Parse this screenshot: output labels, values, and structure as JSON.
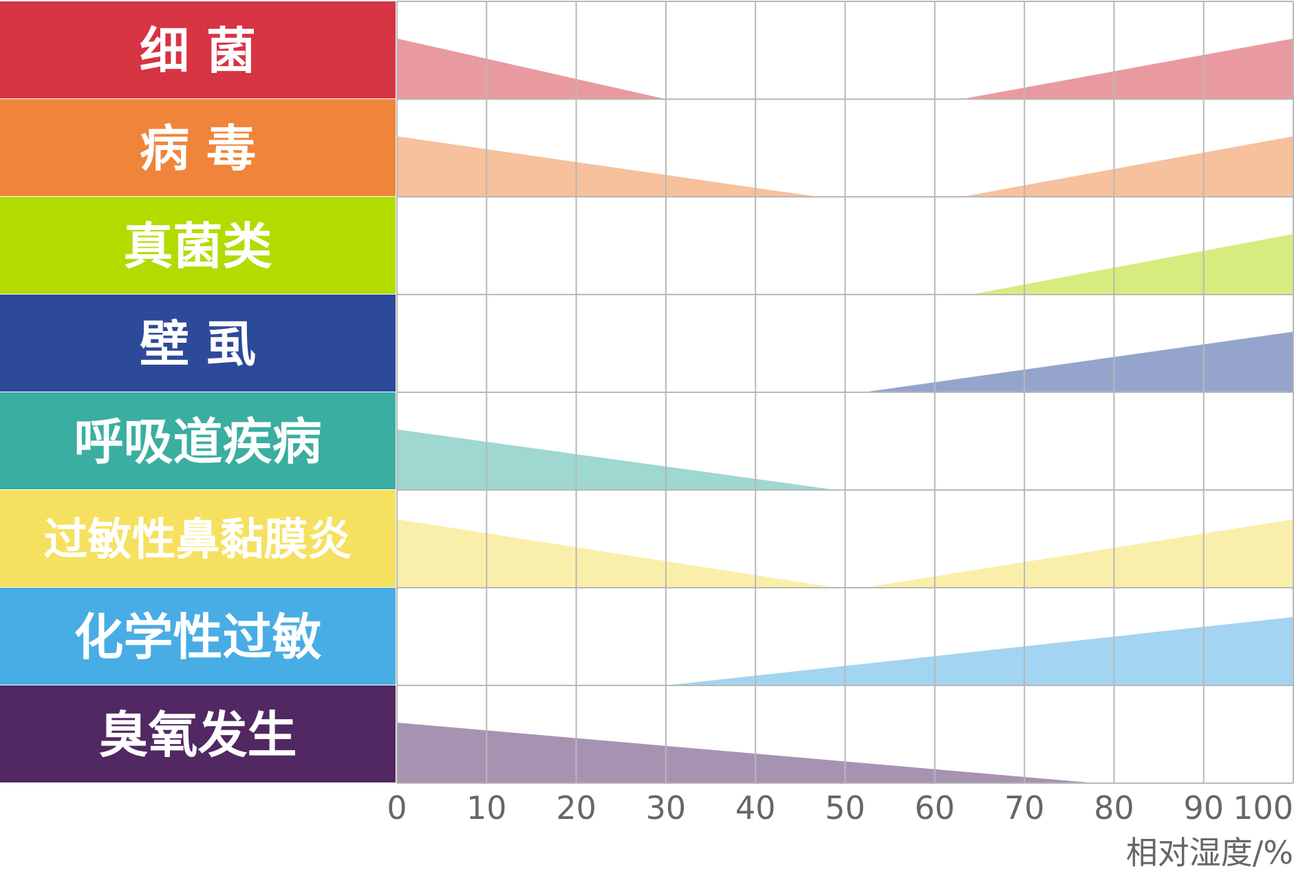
{
  "chart_data": {
    "type": "area",
    "title": "",
    "xlabel": "相对湿度/%",
    "ylabel": "",
    "xlim": [
      0,
      100
    ],
    "ticks": [
      "0",
      "10",
      "20",
      "30",
      "40",
      "50",
      "60",
      "70",
      "80",
      "90",
      "100"
    ],
    "grid": true,
    "rows": [
      {
        "name": "细 菌",
        "label_color": "#d63442",
        "fill_color": "#e99aa0",
        "segments": [
          {
            "x_start": 0,
            "x_end": 30,
            "peak_at": "start",
            "level": 0.62
          },
          {
            "x_start": 63,
            "x_end": 100,
            "peak_at": "end",
            "level": 0.62
          }
        ]
      },
      {
        "name": "病 毒",
        "label_color": "#ee853a",
        "fill_color": "#f6c19c",
        "segments": [
          {
            "x_start": 0,
            "x_end": 47,
            "peak_at": "start",
            "level": 0.62
          },
          {
            "x_start": 63,
            "x_end": 100,
            "peak_at": "end",
            "level": 0.62
          }
        ]
      },
      {
        "name": "真菌类",
        "label_color": "#b2dc00",
        "fill_color": "#d7ec7f",
        "segments": [
          {
            "x_start": 64,
            "x_end": 100,
            "peak_at": "end",
            "level": 0.62
          }
        ]
      },
      {
        "name": "壁 虱",
        "label_color": "#2d4a9a",
        "fill_color": "#95a4cc",
        "segments": [
          {
            "x_start": 52,
            "x_end": 100,
            "peak_at": "end",
            "level": 0.62
          }
        ]
      },
      {
        "name": "呼吸道疾病",
        "label_color": "#3aaea1",
        "fill_color": "#9fd7d1",
        "segments": [
          {
            "x_start": 0,
            "x_end": 49,
            "peak_at": "start",
            "level": 0.62
          }
        ]
      },
      {
        "name": "过敏性鼻黏膜炎",
        "label_color": "#f6e05f",
        "fill_color": "#faefaa",
        "segments": [
          {
            "x_start": 0,
            "x_end": 49,
            "peak_at": "start",
            "level": 0.7
          },
          {
            "x_start": 52,
            "x_end": 100,
            "peak_at": "end",
            "level": 0.7
          }
        ]
      },
      {
        "name": "化学性过敏",
        "label_color": "#48ade4",
        "fill_color": "#a3d4f1",
        "segments": [
          {
            "x_start": 30,
            "x_end": 100,
            "peak_at": "end",
            "level": 0.7
          }
        ]
      },
      {
        "name": "臭氧发生",
        "label_color": "#512862",
        "fill_color": "#a793b1",
        "segments": [
          {
            "x_start": 0,
            "x_end": 78,
            "peak_at": "start",
            "level": 0.62
          }
        ]
      }
    ]
  }
}
